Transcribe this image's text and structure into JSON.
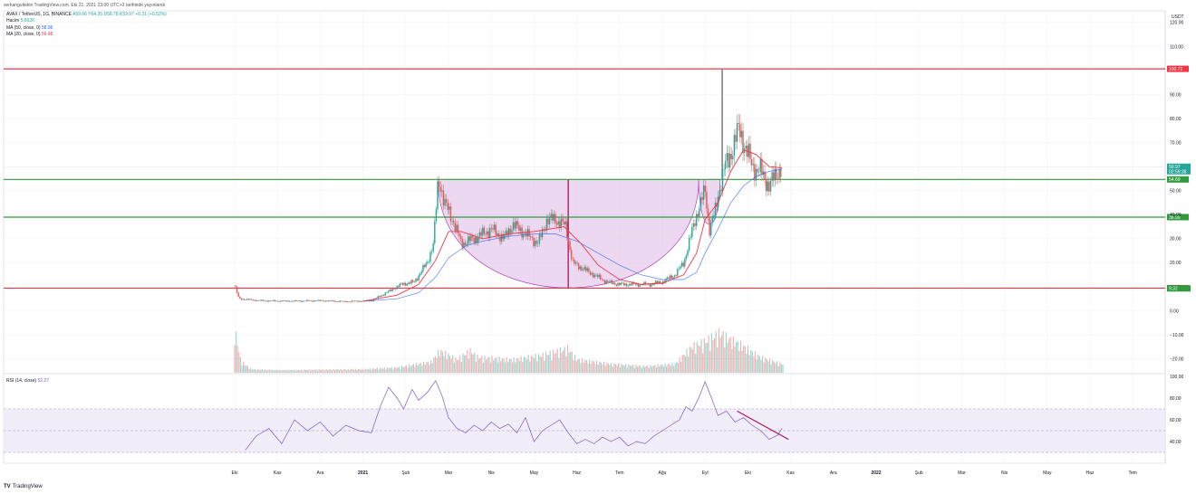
{
  "header": {
    "published": "serkangultekin TradingView.com. Eki 21. 2021 23:00 UTC+3 tarihinde yayınlandı",
    "symbol": "AVAX / TetherUS, 1G, BINANCE",
    "ohlc": "A59.66 Y64.35 D58.78 K59.97 +0.31 (+0.52%)",
    "volume_label": "Hacim",
    "volume_value": "5.662K",
    "ma50_label": "MA (50, close, 0)",
    "ma50_value": "58.96",
    "ma20_label": "MA (20, close, 0)",
    "ma20_value": "59.48",
    "rsi_label": "RSI (14, close)",
    "rsi_value": "52.27"
  },
  "brand": {
    "logo": "TV",
    "name": "TradingView"
  },
  "colors": {
    "up": "#26a69a",
    "down": "#ef5350",
    "ma20": "#f23645",
    "ma50": "#2962ff",
    "resistance": "#f23645",
    "support": "#2e9b3f",
    "cup_fill": "#e1bee7",
    "cup_stroke": "#ab47bc",
    "rsi": "#7e57c2",
    "rsi_band": "#ede7f6",
    "trend": "#ad1457"
  },
  "chart_data": [
    {
      "type": "candlestick",
      "unit": "USDT",
      "scale": "linear",
      "y_ticks": [
        "120.00",
        "110.00",
        "90.00",
        "80.00",
        "70.00",
        "60.00",
        "50.00",
        "40.00",
        "30.00",
        "20.00",
        "10.00",
        "0.00",
        "−10.00",
        "−20.00"
      ],
      "y_tick_values": [
        120,
        110,
        90,
        80,
        70,
        60,
        50,
        40,
        30,
        20,
        10,
        0,
        -10,
        -20
      ],
      "x_ticks": [
        "Eki",
        "Kas",
        "Ara",
        "2021",
        "Şub",
        "Mar",
        "Nis",
        "May",
        "Haz",
        "Tem",
        "Ağu",
        "Eyl",
        "Eki",
        "Kas",
        "Ara",
        "2022",
        "Şub",
        "Mar",
        "Nis",
        "May",
        "Haz",
        "Tem"
      ],
      "x_tick_months": [
        0,
        1,
        2,
        3,
        4,
        5,
        6,
        7,
        8,
        9,
        10,
        11,
        12,
        13,
        14,
        15,
        16,
        17,
        18,
        19,
        20,
        21
      ],
      "price_path": [
        [
          0,
          10.5
        ],
        [
          0.1,
          5.0
        ],
        [
          0.6,
          4.2
        ],
        [
          1.2,
          4.0
        ],
        [
          2.0,
          4.2
        ],
        [
          2.6,
          3.8
        ],
        [
          3.2,
          4.2
        ],
        [
          3.6,
          8
        ],
        [
          3.9,
          11
        ],
        [
          4.2,
          12
        ],
        [
          4.5,
          20
        ],
        [
          4.65,
          28
        ],
        [
          4.75,
          52
        ],
        [
          4.8,
          54
        ],
        [
          4.9,
          45
        ],
        [
          5.1,
          38
        ],
        [
          5.3,
          28
        ],
        [
          5.6,
          30
        ],
        [
          6.0,
          34
        ],
        [
          6.3,
          30
        ],
        [
          6.5,
          36
        ],
        [
          6.8,
          32
        ],
        [
          7.1,
          28
        ],
        [
          7.3,
          38
        ],
        [
          7.5,
          38
        ],
        [
          7.75,
          35
        ],
        [
          7.9,
          20
        ],
        [
          8.1,
          18
        ],
        [
          8.4,
          15
        ],
        [
          8.7,
          12
        ],
        [
          9.0,
          11
        ],
        [
          9.4,
          11
        ],
        [
          9.7,
          11
        ],
        [
          10.0,
          12
        ],
        [
          10.3,
          15
        ],
        [
          10.5,
          20
        ],
        [
          10.65,
          30
        ],
        [
          10.8,
          40
        ],
        [
          11.0,
          50
        ],
        [
          11.1,
          34
        ],
        [
          11.25,
          42
        ],
        [
          11.35,
          52
        ],
        [
          11.45,
          60
        ],
        [
          11.55,
          62
        ],
        [
          11.7,
          72
        ],
        [
          11.8,
          75
        ],
        [
          11.95,
          68
        ],
        [
          12.1,
          60
        ],
        [
          12.3,
          58
        ],
        [
          12.5,
          52
        ],
        [
          12.7,
          58
        ],
        [
          12.8,
          59.97
        ]
      ],
      "wick_spikes": [
        [
          11.4,
          100.72,
          50
        ]
      ],
      "ma20": [
        [
          3.0,
          4.0
        ],
        [
          3.8,
          6.5
        ],
        [
          4.3,
          11
        ],
        [
          4.7,
          21
        ],
        [
          5.0,
          33
        ],
        [
          5.3,
          33
        ],
        [
          5.8,
          30
        ],
        [
          6.4,
          32
        ],
        [
          7.0,
          33
        ],
        [
          7.7,
          35
        ],
        [
          8.1,
          28
        ],
        [
          8.5,
          19
        ],
        [
          9.0,
          13
        ],
        [
          9.5,
          11
        ],
        [
          10.0,
          11.5
        ],
        [
          10.5,
          15
        ],
        [
          10.8,
          24
        ],
        [
          11.0,
          38
        ],
        [
          11.3,
          45
        ],
        [
          11.6,
          58
        ],
        [
          11.9,
          67
        ],
        [
          12.2,
          65
        ],
        [
          12.5,
          60
        ],
        [
          12.8,
          59.48
        ]
      ],
      "ma50": [
        [
          3.0,
          4.0
        ],
        [
          3.8,
          5.0
        ],
        [
          4.3,
          7.5
        ],
        [
          4.7,
          14
        ],
        [
          5.0,
          22
        ],
        [
          5.4,
          27
        ],
        [
          5.8,
          29
        ],
        [
          6.4,
          31
        ],
        [
          7.0,
          32
        ],
        [
          7.5,
          32
        ],
        [
          8.0,
          29
        ],
        [
          8.5,
          24
        ],
        [
          9.0,
          19
        ],
        [
          9.5,
          15
        ],
        [
          10.0,
          13
        ],
        [
          10.5,
          13
        ],
        [
          10.8,
          16
        ],
        [
          11.0,
          24
        ],
        [
          11.3,
          34
        ],
        [
          11.6,
          45
        ],
        [
          11.9,
          52
        ],
        [
          12.2,
          56
        ],
        [
          12.5,
          58
        ],
        [
          12.8,
          58.96
        ]
      ],
      "levels": [
        {
          "price": 100.72,
          "label": "100.72",
          "color": "#f23645"
        },
        {
          "price": 54.69,
          "label": "54.69",
          "color": "#2e9b3f"
        },
        {
          "price": 38.99,
          "label": "38.99",
          "color": "#2e9b3f"
        },
        {
          "price": 9.44,
          "label": "9.44",
          "color": "#f23645"
        }
      ],
      "price_tags": [
        {
          "price": 59.97,
          "label": "59.97",
          "sub": "02:59:38",
          "color": "#26a69a"
        },
        {
          "price": 9.32,
          "label": "9.32",
          "color": "#2e9b3f"
        }
      ],
      "cup": {
        "from_month": 4.75,
        "to_month": 10.85,
        "rim": 54.69,
        "bottom": 9.44
      },
      "handle": {
        "from_month": 10.85,
        "to_month": 11.35,
        "top": 54.69,
        "bottom": 32
      },
      "cup_marker_month": 7.8,
      "spike_marker_month": 11.4
    },
    {
      "type": "line",
      "name": "RSI (14, close)",
      "y_ticks": [
        "100.00",
        "80.00",
        "60.00",
        "40.00"
      ],
      "y_tick_values": [
        100,
        80,
        60,
        40
      ],
      "band": [
        30,
        70
      ],
      "midline": 50,
      "values": [
        [
          0.25,
          32
        ],
        [
          0.5,
          45
        ],
        [
          0.8,
          52
        ],
        [
          1.1,
          38
        ],
        [
          1.4,
          60
        ],
        [
          1.7,
          50
        ],
        [
          2.0,
          58
        ],
        [
          2.3,
          45
        ],
        [
          2.6,
          55
        ],
        [
          2.9,
          50
        ],
        [
          3.2,
          48
        ],
        [
          3.4,
          72
        ],
        [
          3.6,
          90
        ],
        [
          3.8,
          80
        ],
        [
          3.95,
          70
        ],
        [
          4.15,
          88
        ],
        [
          4.3,
          78
        ],
        [
          4.5,
          85
        ],
        [
          4.7,
          96
        ],
        [
          4.85,
          82
        ],
        [
          5.0,
          62
        ],
        [
          5.2,
          52
        ],
        [
          5.4,
          48
        ],
        [
          5.6,
          55
        ],
        [
          5.8,
          50
        ],
        [
          6.0,
          58
        ],
        [
          6.2,
          52
        ],
        [
          6.4,
          56
        ],
        [
          6.6,
          48
        ],
        [
          6.8,
          62
        ],
        [
          7.0,
          40
        ],
        [
          7.2,
          50
        ],
        [
          7.4,
          55
        ],
        [
          7.6,
          60
        ],
        [
          7.8,
          48
        ],
        [
          8.0,
          38
        ],
        [
          8.2,
          42
        ],
        [
          8.4,
          38
        ],
        [
          8.6,
          44
        ],
        [
          8.8,
          40
        ],
        [
          9.0,
          44
        ],
        [
          9.2,
          36
        ],
        [
          9.4,
          40
        ],
        [
          9.6,
          38
        ],
        [
          9.8,
          45
        ],
        [
          10.0,
          50
        ],
        [
          10.2,
          55
        ],
        [
          10.4,
          60
        ],
        [
          10.55,
          72
        ],
        [
          10.7,
          68
        ],
        [
          10.85,
          80
        ],
        [
          11.0,
          95
        ],
        [
          11.15,
          80
        ],
        [
          11.3,
          64
        ],
        [
          11.5,
          68
        ],
        [
          11.7,
          58
        ],
        [
          11.9,
          62
        ],
        [
          12.1,
          55
        ],
        [
          12.3,
          50
        ],
        [
          12.5,
          42
        ],
        [
          12.7,
          46
        ],
        [
          12.8,
          52.27
        ]
      ],
      "trendline": [
        [
          11.75,
          68
        ],
        [
          12.95,
          42
        ]
      ]
    },
    {
      "type": "bar",
      "name": "Hacim",
      "note": "relative volume, largest spikes near Eki 2020 launch and Eyl 2021",
      "values": [
        [
          0.0,
          1.0
        ],
        [
          0.15,
          0.25
        ],
        [
          0.4,
          0.08
        ],
        [
          1.0,
          0.06
        ],
        [
          2.0,
          0.07
        ],
        [
          3.0,
          0.08
        ],
        [
          3.8,
          0.12
        ],
        [
          4.6,
          0.25
        ],
        [
          4.8,
          0.5
        ],
        [
          5.2,
          0.3
        ],
        [
          5.5,
          0.5
        ],
        [
          5.7,
          0.35
        ],
        [
          6.5,
          0.3
        ],
        [
          7.2,
          0.4
        ],
        [
          7.8,
          0.55
        ],
        [
          8.0,
          0.3
        ],
        [
          8.8,
          0.2
        ],
        [
          9.6,
          0.15
        ],
        [
          10.3,
          0.2
        ],
        [
          10.7,
          0.6
        ],
        [
          11.0,
          0.7
        ],
        [
          11.35,
          0.9
        ],
        [
          11.5,
          0.8
        ],
        [
          11.8,
          0.65
        ],
        [
          12.3,
          0.35
        ],
        [
          12.8,
          0.2
        ]
      ]
    }
  ]
}
